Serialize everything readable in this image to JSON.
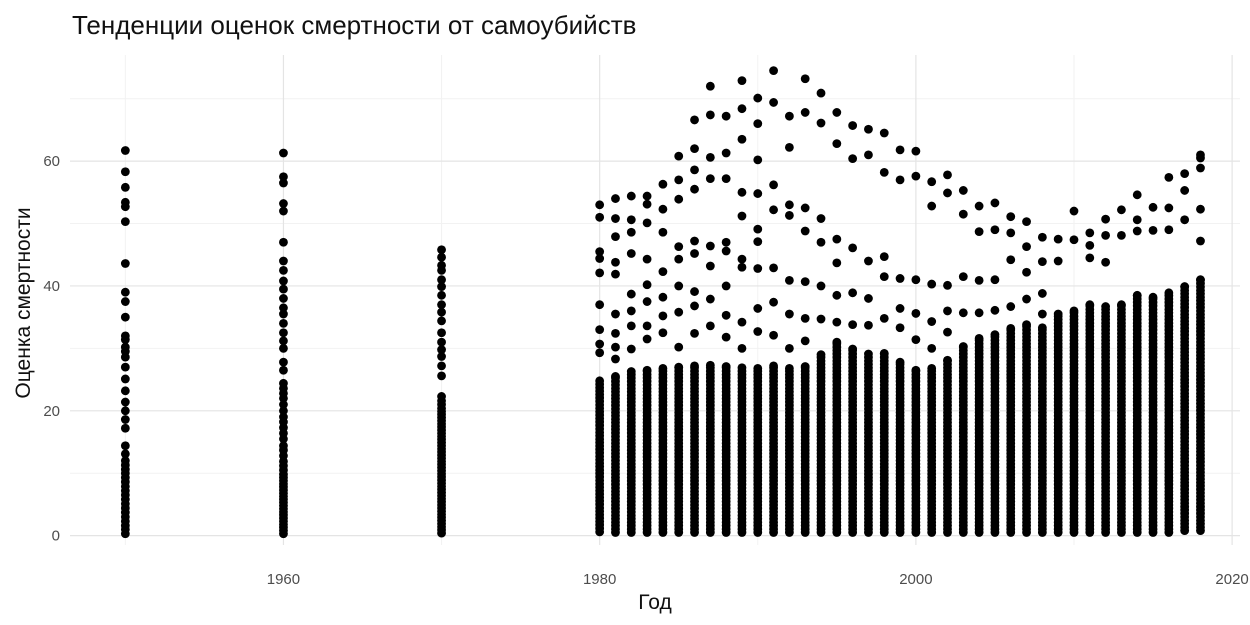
{
  "chart_data": {
    "type": "scatter",
    "title": "Тенденции оценок смертности от самоубийств",
    "xlabel": "Год",
    "ylabel": "Оценка смертности",
    "xlim": [
      1946.5,
      2020.5
    ],
    "ylim": [
      -1.5,
      77
    ],
    "x_ticks": [
      1960,
      1980,
      2000,
      2020
    ],
    "y_ticks": [
      0,
      20,
      40,
      60
    ],
    "grid": true,
    "legend": "none",
    "point_color": "#000000",
    "years": [
      1950,
      1960,
      1970,
      1980,
      1981,
      1982,
      1983,
      1984,
      1985,
      1986,
      1987,
      1988,
      1989,
      1990,
      1991,
      1992,
      1993,
      1994,
      1995,
      1996,
      1997,
      1998,
      1999,
      2000,
      2001,
      2002,
      2003,
      2004,
      2005,
      2006,
      2007,
      2008,
      2009,
      2010,
      2011,
      2012,
      2013,
      2014,
      2015,
      2016,
      2017,
      2018
    ],
    "points_per_year": {
      "1950": [
        0.3,
        1.0,
        1.6,
        2.3,
        3.0,
        3.7,
        4.4,
        5.1,
        5.8,
        6.5,
        7.2,
        7.9,
        8.6,
        9.3,
        10.0,
        10.6,
        11.3,
        12.0,
        13.1,
        14.4,
        17.2,
        18.6,
        20.0,
        21.4,
        23.2,
        25.1,
        27.0,
        28.6,
        29.5,
        30.2,
        31.4,
        32.0,
        35.0,
        37.5,
        39.0,
        43.6,
        50.3,
        52.7,
        53.4,
        55.8,
        58.3,
        61.7
      ],
      "1960": [
        0.3,
        0.8,
        1.3,
        1.8,
        2.3,
        2.8,
        3.3,
        3.8,
        4.3,
        4.8,
        5.3,
        5.8,
        6.3,
        6.8,
        7.3,
        7.8,
        8.3,
        8.8,
        9.3,
        9.8,
        10.5,
        11.2,
        11.9,
        12.8,
        13.7,
        14.4,
        15.5,
        16.4,
        17.3,
        18.2,
        19.0,
        20.0,
        21.0,
        22.0,
        22.8,
        23.6,
        24.4,
        26.5,
        27.8,
        30.0,
        31.2,
        32.5,
        34.0,
        35.5,
        36.5,
        38.0,
        39.5,
        40.8,
        42.5,
        44.0,
        47.0,
        52.0,
        53.2,
        56.5,
        57.5,
        61.3
      ],
      "1970": [
        0.4,
        0.9,
        1.4,
        1.9,
        2.4,
        2.9,
        3.4,
        3.9,
        4.4,
        4.9,
        5.4,
        5.9,
        6.4,
        6.9,
        7.4,
        7.9,
        8.4,
        8.9,
        9.4,
        9.9,
        10.4,
        10.9,
        11.4,
        11.9,
        12.4,
        12.9,
        13.4,
        13.9,
        14.4,
        14.9,
        15.4,
        15.9,
        16.4,
        16.9,
        17.4,
        17.9,
        18.4,
        18.9,
        19.4,
        19.9,
        20.4,
        21.0,
        21.6,
        22.3,
        25.6,
        27.2,
        28.7,
        29.8,
        31.0,
        32.5,
        34.4,
        35.8,
        37.0,
        38.5,
        39.9,
        41.0,
        42.5,
        43.3,
        44.6,
        45.8
      ]
    },
    "year_envelope": [
      {
        "year": 1980,
        "upper": [
          24.8,
          29.3,
          30.7,
          33.0,
          37.0,
          42.1,
          44.4,
          45.5,
          51.0,
          53.0
        ],
        "bottom": 0.6
      },
      {
        "year": 1981,
        "upper": [
          25.5,
          28.3,
          30.2,
          32.4,
          35.5,
          41.9,
          43.8,
          47.9,
          50.8,
          54.0
        ],
        "bottom": 0.5
      },
      {
        "year": 1982,
        "upper": [
          26.3,
          29.9,
          33.6,
          36.0,
          38.7,
          45.2,
          48.6,
          50.6,
          54.4
        ],
        "bottom": 0.5
      },
      {
        "year": 1983,
        "upper": [
          26.5,
          31.5,
          33.6,
          37.5,
          40.2,
          44.3,
          50.1,
          53.1,
          54.4
        ],
        "bottom": 0.5
      },
      {
        "year": 1984,
        "upper": [
          26.8,
          32.5,
          35.2,
          38.2,
          42.3,
          48.6,
          52.3,
          56.3
        ],
        "bottom": 0.5
      },
      {
        "year": 1985,
        "upper": [
          27.0,
          30.2,
          35.8,
          40.0,
          44.3,
          46.3,
          53.9,
          57.0,
          60.8
        ],
        "bottom": 0.5
      },
      {
        "year": 1986,
        "upper": [
          27.2,
          32.4,
          36.8,
          39.1,
          45.2,
          47.2,
          55.5,
          58.6,
          62.0,
          66.6
        ],
        "bottom": 0.5
      },
      {
        "year": 1987,
        "upper": [
          27.3,
          33.6,
          37.9,
          43.2,
          46.4,
          57.2,
          60.6,
          67.4,
          72.0
        ],
        "bottom": 0.5
      },
      {
        "year": 1988,
        "upper": [
          27.1,
          31.8,
          35.3,
          40.0,
          45.6,
          47.0,
          57.2,
          61.3,
          67.2
        ],
        "bottom": 0.5
      },
      {
        "year": 1989,
        "upper": [
          26.9,
          30.0,
          34.2,
          43.0,
          44.3,
          51.2,
          55.0,
          63.5,
          68.4,
          72.9
        ],
        "bottom": 0.5
      },
      {
        "year": 1990,
        "upper": [
          26.8,
          32.7,
          36.4,
          42.8,
          47.1,
          49.1,
          54.8,
          60.2,
          66.0,
          70.1
        ],
        "bottom": 0.5
      },
      {
        "year": 1991,
        "upper": [
          27.2,
          32.1,
          37.4,
          42.9,
          52.2,
          56.2,
          69.4,
          74.5
        ],
        "bottom": 0.5
      },
      {
        "year": 1992,
        "upper": [
          26.8,
          30.0,
          35.5,
          40.9,
          51.3,
          53.0,
          62.2,
          67.2
        ],
        "bottom": 0.5
      },
      {
        "year": 1993,
        "upper": [
          27.1,
          31.2,
          34.8,
          40.7,
          48.8,
          52.5,
          67.8,
          73.2
        ],
        "bottom": 0.5
      },
      {
        "year": 1994,
        "upper": [
          29.0,
          34.7,
          40.0,
          47.0,
          50.8,
          66.1,
          70.9
        ],
        "bottom": 0.5
      },
      {
        "year": 1995,
        "upper": [
          31.0,
          34.2,
          38.5,
          43.7,
          47.5,
          62.8,
          67.8
        ],
        "bottom": 0.5
      },
      {
        "year": 1996,
        "upper": [
          29.9,
          33.8,
          38.9,
          46.1,
          60.4,
          65.7
        ],
        "bottom": 0.5
      },
      {
        "year": 1997,
        "upper": [
          29.1,
          33.7,
          38.0,
          44.0,
          61.0,
          65.1
        ],
        "bottom": 0.5
      },
      {
        "year": 1998,
        "upper": [
          29.2,
          34.8,
          41.5,
          44.7,
          58.2,
          64.5
        ],
        "bottom": 0.5
      },
      {
        "year": 1999,
        "upper": [
          27.8,
          33.3,
          36.4,
          41.2,
          57.0,
          61.8
        ],
        "bottom": 0.5
      },
      {
        "year": 2000,
        "upper": [
          26.5,
          31.4,
          35.6,
          41.0,
          57.6,
          61.6
        ],
        "bottom": 0.5
      },
      {
        "year": 2001,
        "upper": [
          26.8,
          30.0,
          34.3,
          40.3,
          52.8,
          56.7
        ],
        "bottom": 0.5
      },
      {
        "year": 2002,
        "upper": [
          28.1,
          32.6,
          36.0,
          40.1,
          54.9,
          57.8
        ],
        "bottom": 0.5
      },
      {
        "year": 2003,
        "upper": [
          30.3,
          35.7,
          41.5,
          51.5,
          55.3
        ],
        "bottom": 0.5
      },
      {
        "year": 2004,
        "upper": [
          31.6,
          35.7,
          40.9,
          48.7,
          52.8
        ],
        "bottom": 0.5
      },
      {
        "year": 2005,
        "upper": [
          32.2,
          36.1,
          41.0,
          49.0,
          53.3
        ],
        "bottom": 0.5
      },
      {
        "year": 2006,
        "upper": [
          33.2,
          36.7,
          44.2,
          48.5,
          51.1
        ],
        "bottom": 0.5
      },
      {
        "year": 2007,
        "upper": [
          33.8,
          37.9,
          42.2,
          46.3,
          50.3
        ],
        "bottom": 0.5
      },
      {
        "year": 2008,
        "upper": [
          33.3,
          35.5,
          38.8,
          43.9,
          47.8
        ],
        "bottom": 0.5
      },
      {
        "year": 2009,
        "upper": [
          35.5,
          44.0,
          47.5
        ],
        "bottom": 0.5
      },
      {
        "year": 2010,
        "upper": [
          36.0,
          47.4,
          52.0
        ],
        "bottom": 0.5
      },
      {
        "year": 2011,
        "upper": [
          37.0,
          44.5,
          46.5,
          48.5
        ],
        "bottom": 0.5
      },
      {
        "year": 2012,
        "upper": [
          36.7,
          43.8,
          48.1,
          50.7
        ],
        "bottom": 0.5
      },
      {
        "year": 2013,
        "upper": [
          37.0,
          48.1,
          52.2
        ],
        "bottom": 0.5
      },
      {
        "year": 2014,
        "upper": [
          38.5,
          48.8,
          50.6,
          54.6
        ],
        "bottom": 0.5
      },
      {
        "year": 2015,
        "upper": [
          38.2,
          48.9,
          52.6
        ],
        "bottom": 0.5
      },
      {
        "year": 2016,
        "upper": [
          38.9,
          49.0,
          52.5,
          57.4
        ],
        "bottom": 0.5
      },
      {
        "year": 2017,
        "upper": [
          39.9,
          50.6,
          55.3,
          58.0
        ],
        "bottom": 0.8
      },
      {
        "year": 2018,
        "upper": [
          41.0,
          47.2,
          52.3,
          58.9,
          60.5,
          61.0
        ],
        "bottom": 0.8
      }
    ]
  }
}
